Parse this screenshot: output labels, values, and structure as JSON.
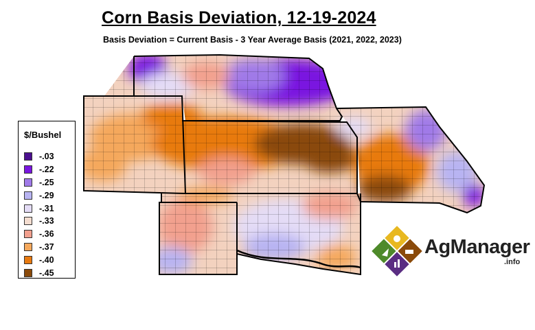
{
  "title": "Corn Basis Deviation, 12-19-2024",
  "subtitle": "Basis Deviation = Current Basis - 3 Year Average Basis (2021, 2022, 2023)",
  "legend": {
    "title": "$/Bushel",
    "items": [
      {
        "label": "-.03",
        "color": "#4b0f8f"
      },
      {
        "label": "-.22",
        "color": "#7a16e0"
      },
      {
        "label": "-.25",
        "color": "#a07ae8"
      },
      {
        "label": "-.29",
        "color": "#b8b4f2"
      },
      {
        "label": "-.31",
        "color": "#e4dcf6"
      },
      {
        "label": "-.33",
        "color": "#f4ddd0"
      },
      {
        "label": "-.36",
        "color": "#f2a08e"
      },
      {
        "label": "-.37",
        "color": "#f5a85c"
      },
      {
        "label": "-.40",
        "color": "#e87a10"
      },
      {
        "label": "-.45",
        "color": "#8a4a0a"
      }
    ]
  },
  "logo": {
    "name": "AgManager",
    "suffix": ".info"
  }
}
